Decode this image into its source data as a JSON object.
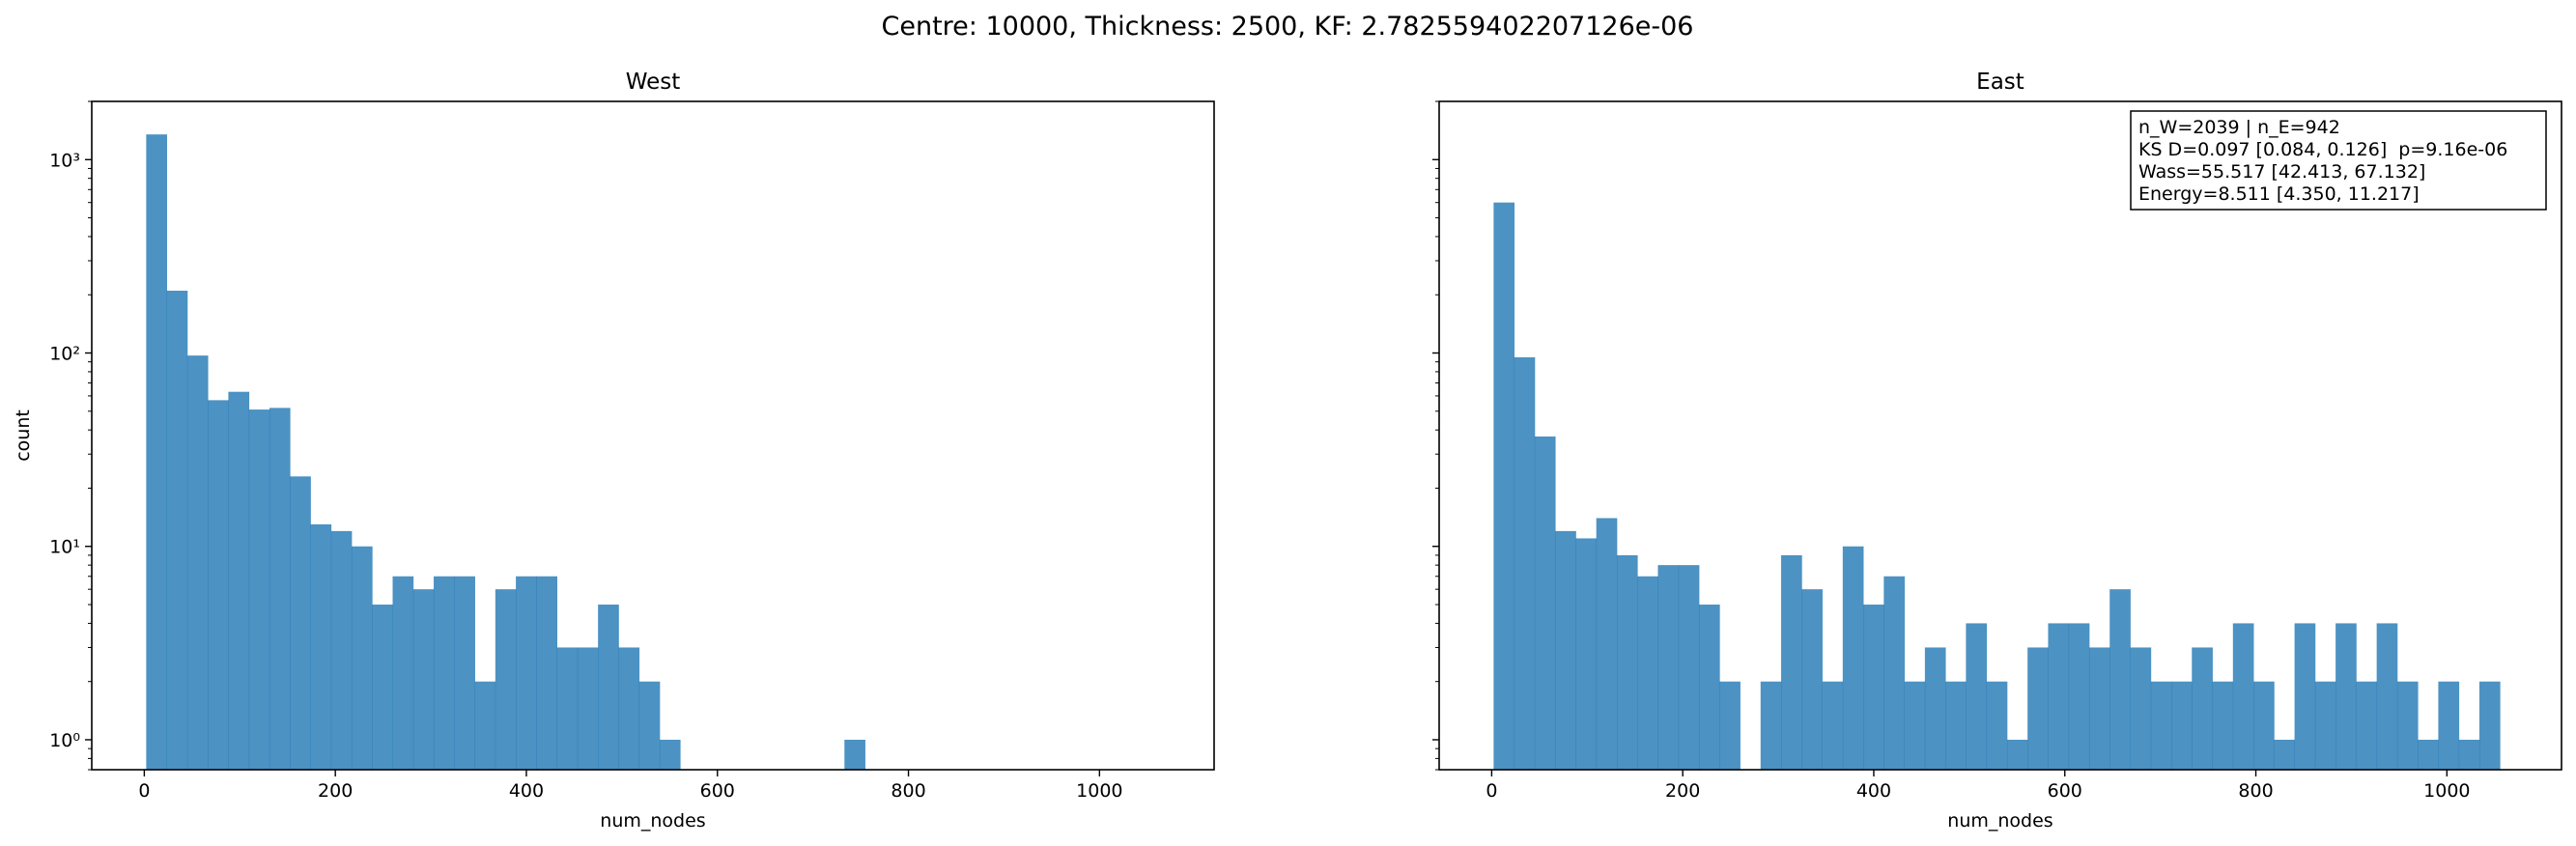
{
  "figure": {
    "suptitle": "Centre: 10000, Thickness: 2500, KF: 2.782559402207126e-06"
  },
  "chart_data": [
    {
      "type": "bar",
      "title": "West",
      "xlabel": "num_nodes",
      "ylabel": "count",
      "yscale": "log",
      "xlim": [
        -55,
        1120
      ],
      "ylim": [
        0.7,
        2000
      ],
      "xticks": [
        "0",
        "200",
        "400",
        "600",
        "800",
        "1000"
      ],
      "yticks": [
        "10⁰",
        "10¹",
        "10²",
        "10³"
      ],
      "bar_color": "#1f77b4",
      "bin_width": 21.5,
      "bin_start": 2,
      "counts": [
        1350,
        210,
        97,
        57,
        63,
        51,
        52,
        23,
        13,
        12,
        10,
        5,
        7,
        6,
        7,
        7,
        2,
        6,
        7,
        7,
        3,
        3,
        5,
        3,
        2,
        1,
        0,
        0,
        0,
        0,
        0,
        0,
        0,
        0,
        1,
        0,
        0,
        0,
        0,
        0,
        0,
        0,
        0,
        0,
        0,
        0,
        0,
        0,
        0,
        0
      ]
    },
    {
      "type": "bar",
      "title": "East",
      "xlabel": "num_nodes",
      "yscale": "log",
      "xlim": [
        -55,
        1120
      ],
      "ylim": [
        0.7,
        2000
      ],
      "xticks": [
        "0",
        "200",
        "400",
        "600",
        "800",
        "1000"
      ],
      "bar_color": "#1f77b4",
      "bin_width": 21.5,
      "bin_start": 2,
      "counts": [
        600,
        95,
        37,
        12,
        11,
        14,
        9,
        7,
        8,
        8,
        5,
        2,
        0,
        2,
        9,
        6,
        2,
        10,
        5,
        7,
        2,
        3,
        2,
        4,
        2,
        1,
        3,
        4,
        4,
        3,
        6,
        3,
        2,
        2,
        3,
        2,
        4,
        2,
        1,
        4,
        2,
        4,
        2,
        4,
        2,
        1,
        2,
        1,
        2,
        0
      ],
      "stats_box": [
        "n_W=2039 | n_E=942",
        "KS D=0.097 [0.084, 0.126]  p=9.16e-06",
        "Wass=55.517 [42.413, 67.132]",
        "Energy=8.511 [4.350, 11.217]"
      ]
    }
  ]
}
